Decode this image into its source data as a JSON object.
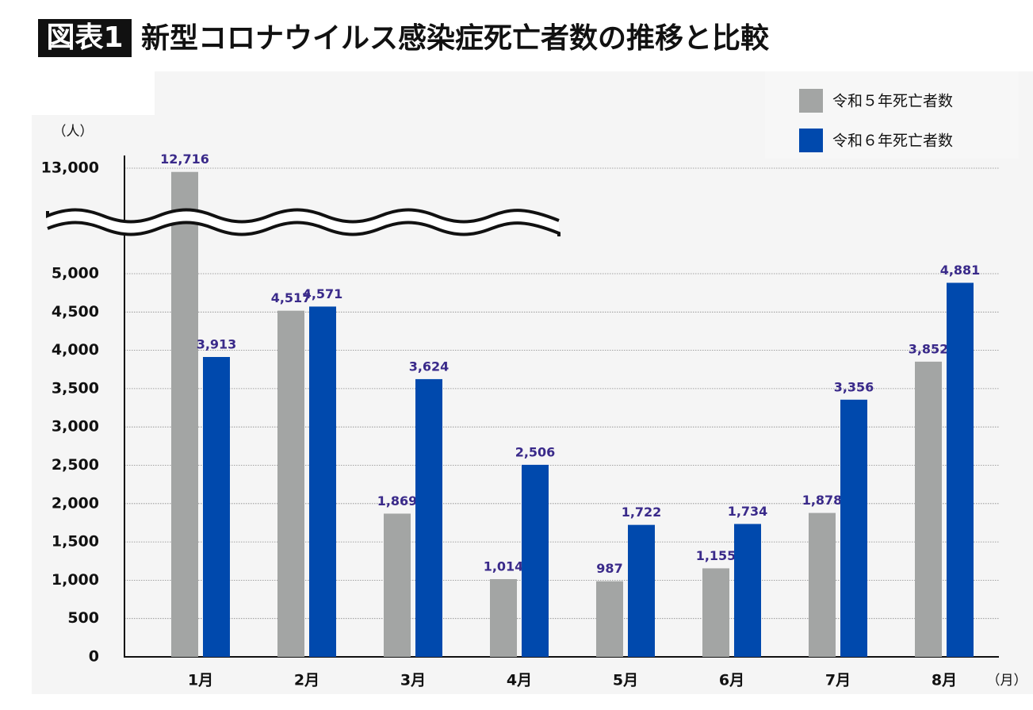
{
  "chart_data": {
    "type": "bar",
    "badge": "図表1",
    "title": "新型コロナウイルス感染症死亡者数の推移と比較",
    "y_axis_label": "（人）",
    "x_axis_label": "（月）",
    "categories": [
      "1月",
      "2月",
      "3月",
      "4月",
      "5月",
      "6月",
      "7月",
      "8月"
    ],
    "series": [
      {
        "name": "令和５年死亡者数",
        "color": "#a3a5a4",
        "values": [
          12716,
          4517,
          1869,
          1014,
          987,
          1155,
          1878,
          3852
        ],
        "value_labels": [
          "12,716",
          "4,517",
          "1,869",
          "1,014",
          "987",
          "1,155",
          "1,878",
          "3,852"
        ]
      },
      {
        "name": "令和６年死亡者数",
        "color": "#0049ad",
        "values": [
          3913,
          4571,
          3624,
          2506,
          1722,
          1734,
          3356,
          4881
        ],
        "value_labels": [
          "3,913",
          "4,571",
          "3,624",
          "2,506",
          "1,722",
          "1,734",
          "3,356",
          "4,881"
        ]
      }
    ],
    "ylim": [
      0,
      13000
    ],
    "yticks": [
      0,
      500,
      {
        "value": 1000,
        "label": "1,000"
      },
      {
        "value": 1500,
        "label": "1,500"
      },
      {
        "value": 2000,
        "label": "2,000"
      },
      {
        "value": 2500,
        "label": "2,500"
      },
      {
        "value": 3000,
        "label": "3,000"
      },
      {
        "value": 3500,
        "label": "3,500"
      },
      {
        "value": 4000,
        "label": "4,000"
      },
      {
        "value": 4500,
        "label": "4,500"
      },
      {
        "value": 5000,
        "label": "5,000"
      },
      {
        "value": 13000,
        "label": "13,000"
      }
    ],
    "broken_axis": true,
    "grid": true
  }
}
